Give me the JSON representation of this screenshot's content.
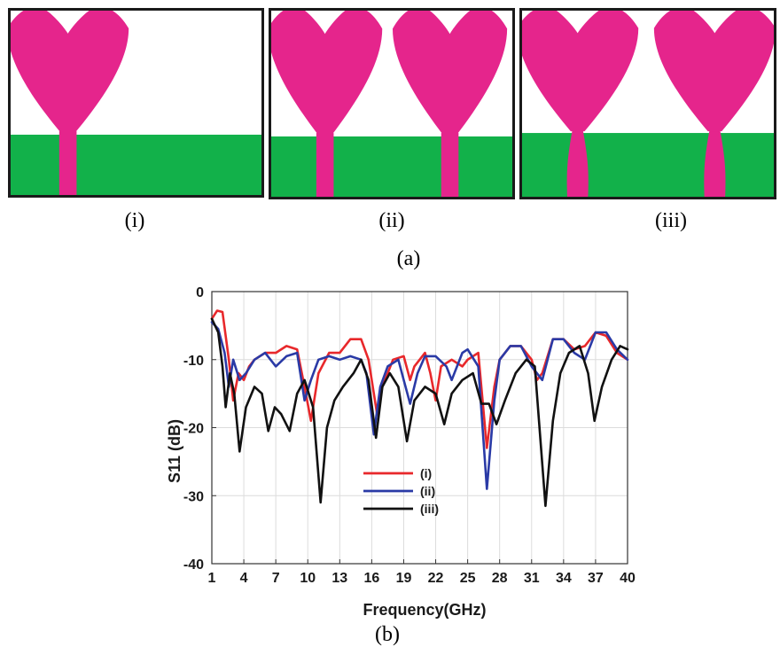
{
  "figure": {
    "part_a": {
      "label": "(a)",
      "panels": [
        {
          "label": "(i)",
          "patches": 1,
          "feed": "straight"
        },
        {
          "label": "(ii)",
          "patches": 2,
          "feed": "straight"
        },
        {
          "label": "(iii)",
          "patches": 2,
          "feed": "tapered"
        }
      ],
      "colors": {
        "patch": "#e5258c",
        "ground": "#12b14a",
        "border": "#1a1a1a"
      }
    },
    "part_b": {
      "label": "(b)"
    }
  },
  "chart_data": {
    "type": "line",
    "xlabel": "Frequency(GHz)",
    "ylabel": "S11 (dB)",
    "xlim": [
      1,
      40
    ],
    "ylim": [
      -40,
      0
    ],
    "xticks": [
      1,
      4,
      7,
      10,
      13,
      16,
      19,
      22,
      25,
      28,
      31,
      34,
      37,
      40
    ],
    "yticks": [
      0,
      -10,
      -20,
      -30,
      -40
    ],
    "grid": true,
    "legend_position": "center",
    "series": [
      {
        "name": "(i)",
        "color": "#e8282b",
        "points": [
          [
            1,
            -4
          ],
          [
            1.5,
            -2.8
          ],
          [
            2,
            -3
          ],
          [
            2.6,
            -10
          ],
          [
            3,
            -16
          ],
          [
            3.5,
            -12
          ],
          [
            4,
            -13
          ],
          [
            4.5,
            -11
          ],
          [
            5,
            -10
          ],
          [
            6,
            -9
          ],
          [
            7,
            -9
          ],
          [
            8,
            -8
          ],
          [
            9,
            -8.5
          ],
          [
            9.7,
            -14
          ],
          [
            10.3,
            -19
          ],
          [
            11,
            -12
          ],
          [
            12,
            -9
          ],
          [
            13,
            -9
          ],
          [
            14,
            -7
          ],
          [
            15,
            -7
          ],
          [
            15.7,
            -10
          ],
          [
            16.5,
            -18
          ],
          [
            17,
            -14
          ],
          [
            18,
            -10
          ],
          [
            19,
            -9.5
          ],
          [
            19.6,
            -13
          ],
          [
            20,
            -11
          ],
          [
            21,
            -9
          ],
          [
            21.5,
            -12
          ],
          [
            22,
            -16
          ],
          [
            22.5,
            -11
          ],
          [
            23.5,
            -10
          ],
          [
            24.5,
            -11
          ],
          [
            25,
            -10
          ],
          [
            26,
            -9
          ],
          [
            26.8,
            -23
          ],
          [
            27.5,
            -14
          ],
          [
            28,
            -10
          ],
          [
            29,
            -8
          ],
          [
            30,
            -8
          ],
          [
            31,
            -10
          ],
          [
            31.5,
            -13
          ],
          [
            32,
            -12
          ],
          [
            33,
            -7
          ],
          [
            34,
            -7
          ],
          [
            35,
            -8.5
          ],
          [
            36,
            -8
          ],
          [
            37,
            -6
          ],
          [
            38,
            -6.5
          ],
          [
            39,
            -9
          ],
          [
            40,
            -10
          ]
        ]
      },
      {
        "name": "(ii)",
        "color": "#2a3aa6",
        "points": [
          [
            1,
            -4.5
          ],
          [
            1.6,
            -5.5
          ],
          [
            2.2,
            -9
          ],
          [
            2.6,
            -14
          ],
          [
            3,
            -10
          ],
          [
            3.6,
            -13
          ],
          [
            4.2,
            -12
          ],
          [
            5,
            -10
          ],
          [
            6,
            -9
          ],
          [
            7,
            -11
          ],
          [
            8,
            -9.5
          ],
          [
            9,
            -9
          ],
          [
            9.7,
            -16
          ],
          [
            10.3,
            -13
          ],
          [
            11,
            -10
          ],
          [
            12,
            -9.5
          ],
          [
            13,
            -10
          ],
          [
            14,
            -9.5
          ],
          [
            15,
            -10
          ],
          [
            15.5,
            -12
          ],
          [
            16.2,
            -21
          ],
          [
            16.8,
            -14
          ],
          [
            17.5,
            -11
          ],
          [
            18.5,
            -10
          ],
          [
            19,
            -13
          ],
          [
            19.6,
            -16.5
          ],
          [
            20.3,
            -12
          ],
          [
            21,
            -9.5
          ],
          [
            22,
            -9.5
          ],
          [
            23,
            -11
          ],
          [
            23.5,
            -13
          ],
          [
            24.5,
            -9
          ],
          [
            25,
            -8.5
          ],
          [
            26,
            -11
          ],
          [
            26.8,
            -29
          ],
          [
            27.5,
            -16
          ],
          [
            28,
            -10
          ],
          [
            29,
            -8
          ],
          [
            30,
            -8
          ],
          [
            31,
            -11
          ],
          [
            32,
            -13
          ],
          [
            33,
            -7
          ],
          [
            34,
            -7
          ],
          [
            35,
            -9
          ],
          [
            36,
            -10
          ],
          [
            37,
            -6
          ],
          [
            38,
            -6
          ],
          [
            39,
            -8.5
          ],
          [
            40,
            -10
          ]
        ]
      },
      {
        "name": "(iii)",
        "color": "#111111",
        "points": [
          [
            1,
            -4
          ],
          [
            1.6,
            -6
          ],
          [
            2,
            -11
          ],
          [
            2.3,
            -17
          ],
          [
            2.7,
            -12
          ],
          [
            3.1,
            -15
          ],
          [
            3.6,
            -23.5
          ],
          [
            4.2,
            -17
          ],
          [
            5,
            -14
          ],
          [
            5.7,
            -15
          ],
          [
            6.3,
            -20.5
          ],
          [
            6.9,
            -17
          ],
          [
            7.5,
            -18
          ],
          [
            8.3,
            -20.5
          ],
          [
            9,
            -15
          ],
          [
            9.7,
            -13
          ],
          [
            10.5,
            -17
          ],
          [
            11.2,
            -31
          ],
          [
            11.8,
            -20
          ],
          [
            12.5,
            -16
          ],
          [
            13.3,
            -14
          ],
          [
            14.3,
            -12
          ],
          [
            15,
            -10
          ],
          [
            15.7,
            -13
          ],
          [
            16.4,
            -21.5
          ],
          [
            17,
            -14
          ],
          [
            17.7,
            -12
          ],
          [
            18.5,
            -14
          ],
          [
            19.3,
            -22
          ],
          [
            20,
            -16
          ],
          [
            21,
            -14
          ],
          [
            22,
            -15
          ],
          [
            22.8,
            -19.5
          ],
          [
            23.5,
            -15
          ],
          [
            24.5,
            -13
          ],
          [
            25.5,
            -12
          ],
          [
            26.3,
            -16.5
          ],
          [
            27,
            -16.5
          ],
          [
            27.7,
            -19.5
          ],
          [
            28.5,
            -16
          ],
          [
            29.5,
            -12
          ],
          [
            30.5,
            -10
          ],
          [
            31.3,
            -11
          ],
          [
            32.3,
            -31.5
          ],
          [
            33,
            -19
          ],
          [
            33.7,
            -12
          ],
          [
            34.5,
            -9
          ],
          [
            35.5,
            -8
          ],
          [
            36.3,
            -12
          ],
          [
            36.9,
            -19
          ],
          [
            37.6,
            -14
          ],
          [
            38.5,
            -10
          ],
          [
            39.3,
            -8
          ],
          [
            40,
            -8.5
          ]
        ]
      }
    ]
  }
}
